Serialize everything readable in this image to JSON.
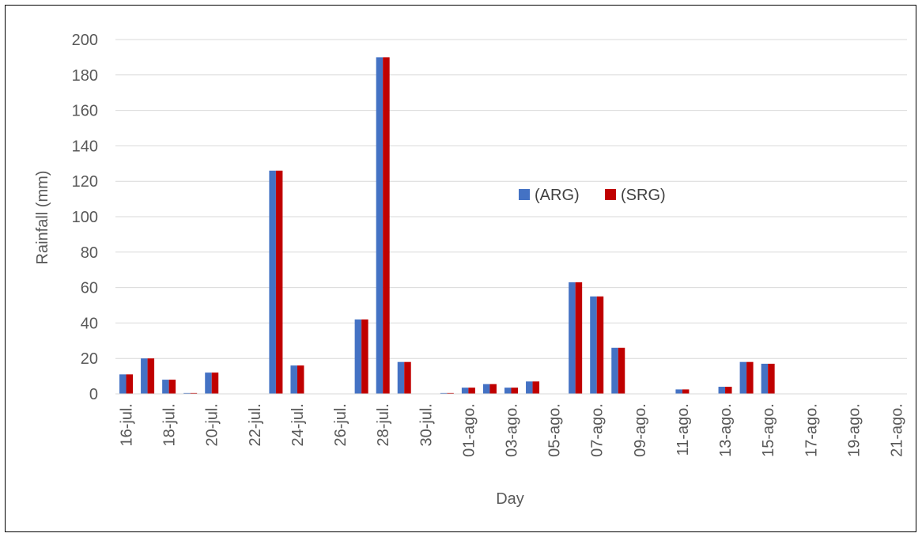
{
  "chart_data": {
    "type": "bar",
    "title": "",
    "xlabel": "Day",
    "ylabel": "Rainfall (mm)",
    "ylim": [
      0,
      200
    ],
    "yticks": [
      0,
      20,
      40,
      60,
      80,
      100,
      120,
      140,
      160,
      180,
      200
    ],
    "grid": true,
    "legend_position": "center",
    "categories": [
      "16-jul.",
      "17-jul.",
      "18-jul.",
      "19-jul.",
      "20-jul.",
      "21-jul.",
      "22-jul.",
      "23-jul.",
      "24-jul.",
      "25-jul.",
      "26-jul.",
      "27-jul.",
      "28-jul.",
      "29-jul.",
      "30-jul.",
      "31-jul.",
      "01-ago.",
      "02-ago.",
      "03-ago.",
      "04-ago.",
      "05-ago.",
      "06-ago.",
      "07-ago.",
      "08-ago.",
      "09-ago.",
      "10-ago.",
      "11-ago.",
      "12-ago.",
      "13-ago.",
      "14-ago.",
      "15-ago.",
      "16-ago.",
      "17-ago.",
      "18-ago.",
      "19-ago.",
      "20-ago.",
      "21-ago."
    ],
    "tick_labels": [
      "16-jul.",
      "",
      "18-jul.",
      "",
      "20-jul.",
      "",
      "22-jul.",
      "",
      "24-jul.",
      "",
      "26-jul.",
      "",
      "28-jul.",
      "",
      "30-jul.",
      "",
      "01-ago.",
      "",
      "03-ago.",
      "",
      "05-ago.",
      "",
      "07-ago.",
      "",
      "09-ago.",
      "",
      "11-ago.",
      "",
      "13-ago.",
      "",
      "15-ago.",
      "",
      "17-ago.",
      "",
      "19-ago.",
      "",
      "21-ago."
    ],
    "series": [
      {
        "name": "(ARG)",
        "color": "#4472C4",
        "values": [
          11,
          20,
          8,
          0.5,
          12,
          0,
          0,
          126,
          16,
          0,
          0,
          42,
          190,
          18,
          0,
          0.5,
          3.5,
          5.5,
          3.5,
          7,
          0,
          63,
          55,
          26,
          0,
          0,
          2.5,
          0,
          4,
          18,
          17,
          0,
          0,
          0,
          0,
          0,
          0
        ]
      },
      {
        "name": "(SRG)",
        "color": "#C00000",
        "values": [
          11,
          20,
          8,
          0.5,
          12,
          0,
          0,
          126,
          16,
          0,
          0,
          42,
          190,
          18,
          0,
          0.5,
          3.5,
          5.5,
          3.5,
          7,
          0,
          63,
          55,
          26,
          0,
          0,
          2.5,
          0,
          4,
          18,
          17,
          0,
          0,
          0,
          0,
          0,
          0
        ]
      }
    ]
  }
}
